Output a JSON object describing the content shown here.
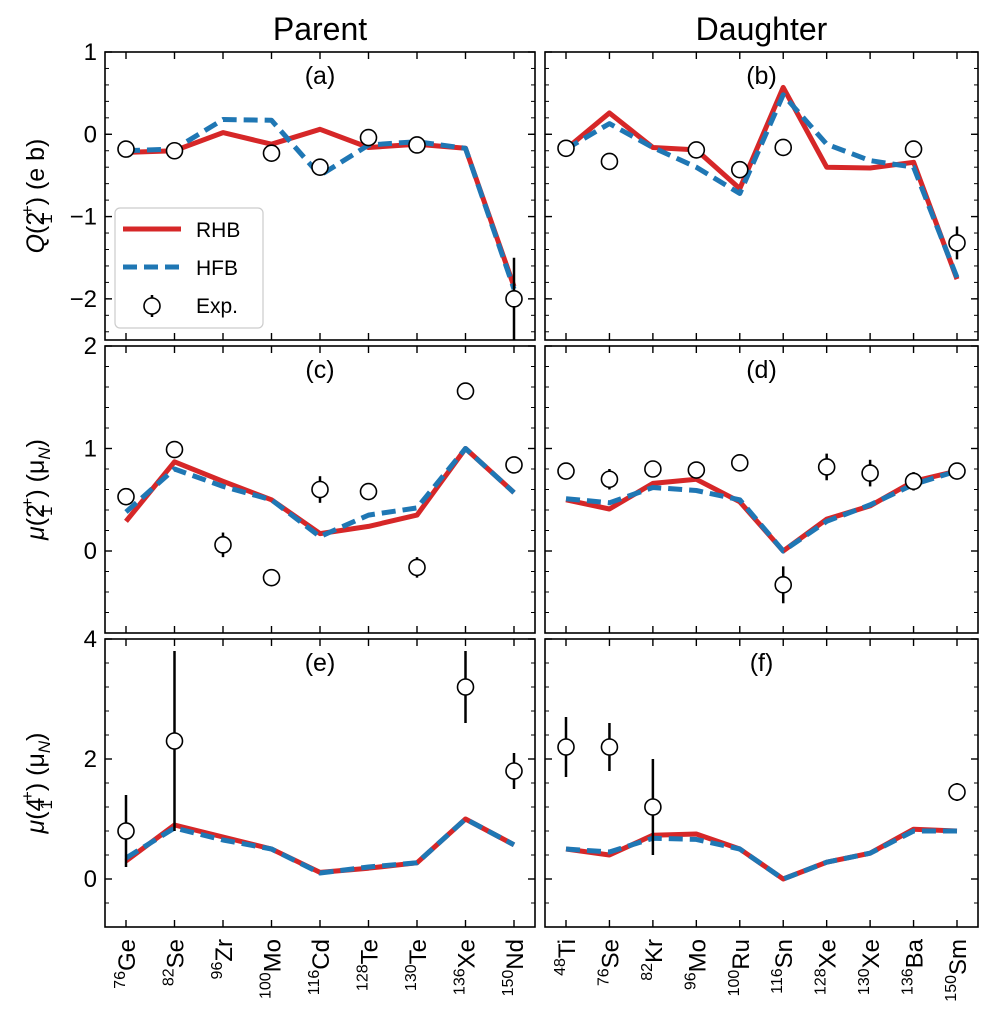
{
  "figure": {
    "column_titles": [
      "Parent",
      "Daughter"
    ],
    "row_ylabels": [
      {
        "sym": "Q",
        "sub": "1",
        "sup": "+",
        "unit": "(e b)"
      },
      {
        "sym": "μ",
        "sub": "1",
        "sup": "+",
        "unit": "(μ",
        "unit_sub": "N",
        "unit_close": ")"
      },
      {
        "sym": "μ",
        "sub": "1",
        "sup": "+",
        "unit": "(μ",
        "unit_sub": "N",
        "unit_close": ")"
      }
    ],
    "state_labels": [
      "2",
      "2",
      "4"
    ],
    "legend": {
      "placement": "panel (a), left",
      "entries": [
        {
          "label": "RHB",
          "color": "#d62728",
          "style": "solid"
        },
        {
          "label": "HFB",
          "color": "#1f77b4",
          "style": "dashed"
        },
        {
          "label": "Exp.",
          "marker": "open-circle"
        }
      ]
    }
  },
  "chart_data": [
    {
      "type": "line",
      "panel": "(a)",
      "row": 0,
      "col": 0,
      "categories": [
        {
          "mass": "76",
          "el": "Ge"
        },
        {
          "mass": "82",
          "el": "Se"
        },
        {
          "mass": "96",
          "el": "Zr"
        },
        {
          "mass": "100",
          "el": "Mo"
        },
        {
          "mass": "116",
          "el": "Cd"
        },
        {
          "mass": "128",
          "el": "Te"
        },
        {
          "mass": "130",
          "el": "Te"
        },
        {
          "mass": "136",
          "el": "Xe"
        },
        {
          "mass": "150",
          "el": "Nd"
        }
      ],
      "ylim": [
        -2.5,
        1.0
      ],
      "yticks": [
        -2,
        -1,
        0,
        1
      ],
      "series": [
        {
          "name": "RHB",
          "values": [
            -0.22,
            -0.2,
            0.02,
            -0.12,
            0.06,
            -0.16,
            -0.12,
            -0.17,
            -1.85
          ]
        },
        {
          "name": "HFB",
          "values": [
            -0.2,
            -0.18,
            0.18,
            0.17,
            -0.5,
            -0.13,
            -0.09,
            -0.17,
            -1.88
          ]
        }
      ],
      "exp": [
        {
          "y": -0.18,
          "err": 0.0
        },
        {
          "y": -0.2,
          "err": 0.0
        },
        null,
        {
          "y": -0.23,
          "err": 0.0
        },
        {
          "y": -0.4,
          "err": 0.0
        },
        {
          "y": -0.04,
          "err": 0.0
        },
        {
          "y": -0.13,
          "err": 0.0
        },
        null,
        {
          "y": -2.0,
          "err": 0.5
        }
      ]
    },
    {
      "type": "line",
      "panel": "(b)",
      "row": 0,
      "col": 1,
      "categories": [
        {
          "mass": "48",
          "el": "Ti"
        },
        {
          "mass": "76",
          "el": "Se"
        },
        {
          "mass": "82",
          "el": "Kr"
        },
        {
          "mass": "96",
          "el": "Mo"
        },
        {
          "mass": "100",
          "el": "Ru"
        },
        {
          "mass": "116",
          "el": "Sn"
        },
        {
          "mass": "128",
          "el": "Xe"
        },
        {
          "mass": "130",
          "el": "Xe"
        },
        {
          "mass": "136",
          "el": "Ba"
        },
        {
          "mass": "150",
          "el": "Sm"
        }
      ],
      "ylim": [
        -2.5,
        1.0
      ],
      "yticks": [
        -2,
        -1,
        0,
        1
      ],
      "series": [
        {
          "name": "RHB",
          "values": [
            -0.18,
            0.26,
            -0.16,
            -0.19,
            -0.66,
            0.57,
            -0.4,
            -0.41,
            -0.34,
            -1.76
          ]
        },
        {
          "name": "HFB",
          "values": [
            -0.18,
            0.13,
            -0.16,
            -0.4,
            -0.72,
            0.48,
            -0.12,
            -0.32,
            -0.4,
            -1.74
          ]
        }
      ],
      "exp": [
        {
          "y": -0.17,
          "err": 0.0
        },
        {
          "y": -0.33,
          "err": 0.0
        },
        null,
        {
          "y": -0.19,
          "err": 0.0
        },
        {
          "y": -0.43,
          "err": 0.07
        },
        {
          "y": -0.16,
          "err": 0.0
        },
        null,
        null,
        {
          "y": -0.18,
          "err": 0.0
        },
        {
          "y": -1.32,
          "err": 0.2
        }
      ]
    },
    {
      "type": "line",
      "panel": "(c)",
      "row": 1,
      "col": 0,
      "ylim": [
        -0.8,
        2.0
      ],
      "yticks": [
        0,
        1,
        2
      ],
      "series": [
        {
          "name": "RHB",
          "values": [
            0.29,
            0.87,
            0.68,
            0.5,
            0.17,
            0.24,
            0.35,
            1.0,
            0.57
          ]
        },
        {
          "name": "HFB",
          "values": [
            0.38,
            0.8,
            0.63,
            0.5,
            0.14,
            0.35,
            0.42,
            1.0,
            0.57
          ]
        }
      ],
      "exp": [
        {
          "y": 0.53,
          "err": 0.05
        },
        {
          "y": 0.99,
          "err": 0.05
        },
        {
          "y": 0.06,
          "err": 0.12
        },
        {
          "y": -0.26,
          "err": 0.0
        },
        {
          "y": 0.6,
          "err": 0.13
        },
        {
          "y": 0.58,
          "err": 0.05
        },
        {
          "y": -0.16,
          "err": 0.1
        },
        {
          "y": 1.56,
          "err": 0.08
        },
        {
          "y": 0.84,
          "err": 0.04
        }
      ]
    },
    {
      "type": "line",
      "panel": "(d)",
      "row": 1,
      "col": 1,
      "ylim": [
        -0.8,
        2.0
      ],
      "yticks": [
        0,
        1,
        2
      ],
      "series": [
        {
          "name": "RHB",
          "values": [
            0.5,
            0.41,
            0.66,
            0.7,
            0.48,
            0.0,
            0.31,
            0.44,
            0.68,
            0.78
          ]
        },
        {
          "name": "HFB",
          "values": [
            0.51,
            0.47,
            0.62,
            0.59,
            0.5,
            0.0,
            0.29,
            0.45,
            0.65,
            0.78
          ]
        }
      ],
      "exp": [
        {
          "y": 0.78,
          "err": 0.04
        },
        {
          "y": 0.7,
          "err": 0.1
        },
        {
          "y": 0.8,
          "err": 0.04
        },
        {
          "y": 0.79,
          "err": 0.05
        },
        {
          "y": 0.86,
          "err": 0.04
        },
        {
          "y": -0.33,
          "err": 0.18
        },
        {
          "y": 0.82,
          "err": 0.13
        },
        {
          "y": 0.76,
          "err": 0.13
        },
        {
          "y": 0.68,
          "err": 0.09
        },
        {
          "y": 0.78,
          "err": 0.04
        }
      ]
    },
    {
      "type": "line",
      "panel": "(e)",
      "row": 2,
      "col": 0,
      "ylim": [
        -0.8,
        4.0
      ],
      "yticks": [
        0,
        2,
        4
      ],
      "series": [
        {
          "name": "RHB",
          "values": [
            0.3,
            0.9,
            0.7,
            0.5,
            0.11,
            0.18,
            0.27,
            1.0,
            0.57
          ]
        },
        {
          "name": "HFB",
          "values": [
            0.35,
            0.85,
            0.65,
            0.5,
            0.1,
            0.2,
            0.27,
            1.0,
            0.57
          ]
        }
      ],
      "exp": [
        {
          "y": 0.8,
          "err": 0.6
        },
        {
          "y": 2.3,
          "err": 1.5
        },
        null,
        null,
        null,
        null,
        null,
        {
          "y": 3.2,
          "err": 0.6
        },
        {
          "y": 1.8,
          "err": 0.3
        }
      ]
    },
    {
      "type": "line",
      "panel": "(f)",
      "row": 2,
      "col": 1,
      "ylim": [
        -0.8,
        4.0
      ],
      "yticks": [
        0,
        2,
        4
      ],
      "series": [
        {
          "name": "RHB",
          "values": [
            0.5,
            0.4,
            0.73,
            0.75,
            0.5,
            0.0,
            0.28,
            0.43,
            0.83,
            0.8
          ]
        },
        {
          "name": "HFB",
          "values": [
            0.5,
            0.45,
            0.68,
            0.66,
            0.5,
            0.0,
            0.28,
            0.43,
            0.8,
            0.8
          ]
        }
      ],
      "exp": [
        {
          "y": 2.2,
          "err": 0.5
        },
        {
          "y": 2.2,
          "err": 0.4
        },
        {
          "y": 1.2,
          "err": 0.8
        },
        null,
        null,
        null,
        null,
        null,
        null,
        {
          "y": 1.45,
          "err": 0.15
        }
      ]
    }
  ]
}
